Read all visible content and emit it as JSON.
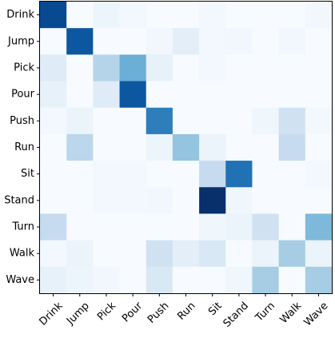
{
  "chart_data": {
    "type": "heatmap",
    "title": "",
    "xlabel": "",
    "ylabel": "",
    "x_categories": [
      "Drink",
      "Jump",
      "Pick",
      "Pour",
      "Push",
      "Run",
      "Sit",
      "Stand",
      "Turn",
      "Walk",
      "Wave"
    ],
    "y_categories": [
      "Drink",
      "Jump",
      "Pick",
      "Pour",
      "Push",
      "Run",
      "Sit",
      "Stand",
      "Turn",
      "Walk",
      "Wave"
    ],
    "value_range": [
      0,
      1
    ],
    "colormap": "Blues",
    "grid": false,
    "legend": "none",
    "x_tick_rotation_deg": -45,
    "values": [
      [
        0.9,
        0.0,
        0.05,
        0.02,
        0.0,
        0.0,
        0.02,
        0.0,
        0.0,
        0.0,
        0.03
      ],
      [
        0.0,
        0.85,
        0.0,
        0.0,
        0.03,
        0.1,
        0.02,
        0.03,
        0.0,
        0.03,
        0.0
      ],
      [
        0.12,
        0.0,
        0.3,
        0.5,
        0.08,
        0.0,
        0.02,
        0.0,
        0.0,
        0.0,
        0.0
      ],
      [
        0.08,
        0.0,
        0.12,
        0.85,
        0.0,
        0.0,
        0.0,
        0.0,
        0.0,
        0.0,
        0.0
      ],
      [
        0.02,
        0.06,
        0.0,
        0.0,
        0.7,
        0.0,
        0.0,
        0.0,
        0.04,
        0.2,
        0.02
      ],
      [
        0.0,
        0.28,
        0.0,
        0.0,
        0.05,
        0.4,
        0.06,
        0.0,
        0.0,
        0.25,
        0.0
      ],
      [
        0.0,
        0.0,
        0.02,
        0.02,
        0.0,
        0.0,
        0.25,
        0.75,
        0.0,
        0.0,
        0.02
      ],
      [
        0.0,
        0.0,
        0.02,
        0.02,
        0.03,
        0.0,
        1.0,
        0.04,
        0.0,
        0.0,
        0.0
      ],
      [
        0.25,
        0.0,
        0.0,
        0.0,
        0.0,
        0.0,
        0.04,
        0.06,
        0.2,
        0.0,
        0.45
      ],
      [
        0.02,
        0.06,
        0.0,
        0.0,
        0.2,
        0.1,
        0.15,
        0.0,
        0.06,
        0.35,
        0.06
      ],
      [
        0.08,
        0.05,
        0.03,
        0.0,
        0.15,
        0.0,
        0.0,
        0.04,
        0.35,
        0.0,
        0.35
      ]
    ]
  }
}
